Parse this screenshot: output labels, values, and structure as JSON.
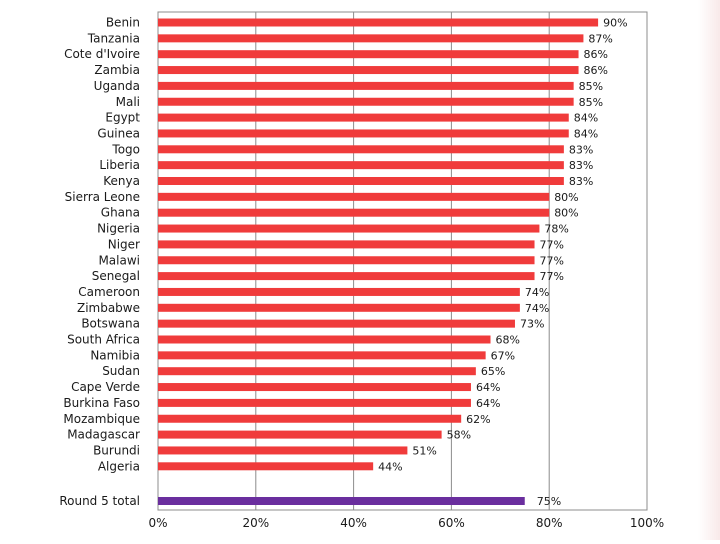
{
  "chart_data": {
    "type": "bar",
    "orientation": "horizontal",
    "categories": [
      "Benin",
      "Tanzania",
      "Cote d'Ivoire",
      "Zambia",
      "Uganda",
      "Mali",
      "Egypt",
      "Guinea",
      "Togo",
      "Liberia",
      "Kenya",
      "Sierra Leone",
      "Ghana",
      "Nigeria",
      "Niger",
      "Malawi",
      "Senegal",
      "Cameroon",
      "Zimbabwe",
      "Botswana",
      "South Africa",
      "Namibia",
      "Sudan",
      "Cape Verde",
      "Burkina Faso",
      "Mozambique",
      "Madagascar",
      "Burundi",
      "Algeria"
    ],
    "values": [
      90,
      87,
      86,
      86,
      85,
      85,
      84,
      84,
      83,
      83,
      83,
      80,
      80,
      78,
      77,
      77,
      77,
      74,
      74,
      73,
      68,
      67,
      65,
      64,
      64,
      62,
      58,
      51,
      44
    ],
    "value_labels": [
      "90%",
      "87%",
      "86%",
      "86%",
      "85%",
      "85%",
      "84%",
      "84%",
      "83%",
      "83%",
      "83%",
      "80%",
      "80%",
      "78%",
      "77%",
      "77%",
      "77%",
      "74%",
      "74%",
      "73%",
      "68%",
      "67%",
      "65%",
      "64%",
      "64%",
      "62%",
      "58%",
      "51%",
      "44%"
    ],
    "total": {
      "label": "Round 5 total",
      "value": 75,
      "value_label": "75%"
    },
    "xlim": [
      0,
      100
    ],
    "x_ticks": [
      0,
      20,
      40,
      60,
      80,
      100
    ],
    "x_tick_labels": [
      "0%",
      "20%",
      "40%",
      "60%",
      "80%",
      "100%"
    ],
    "grid": true,
    "legend": "none",
    "colors": {
      "bar": "#f03b3b",
      "total_bar": "#6a2e9e",
      "grid": "#8c8c8c",
      "frame": "#8c8c8c"
    }
  }
}
